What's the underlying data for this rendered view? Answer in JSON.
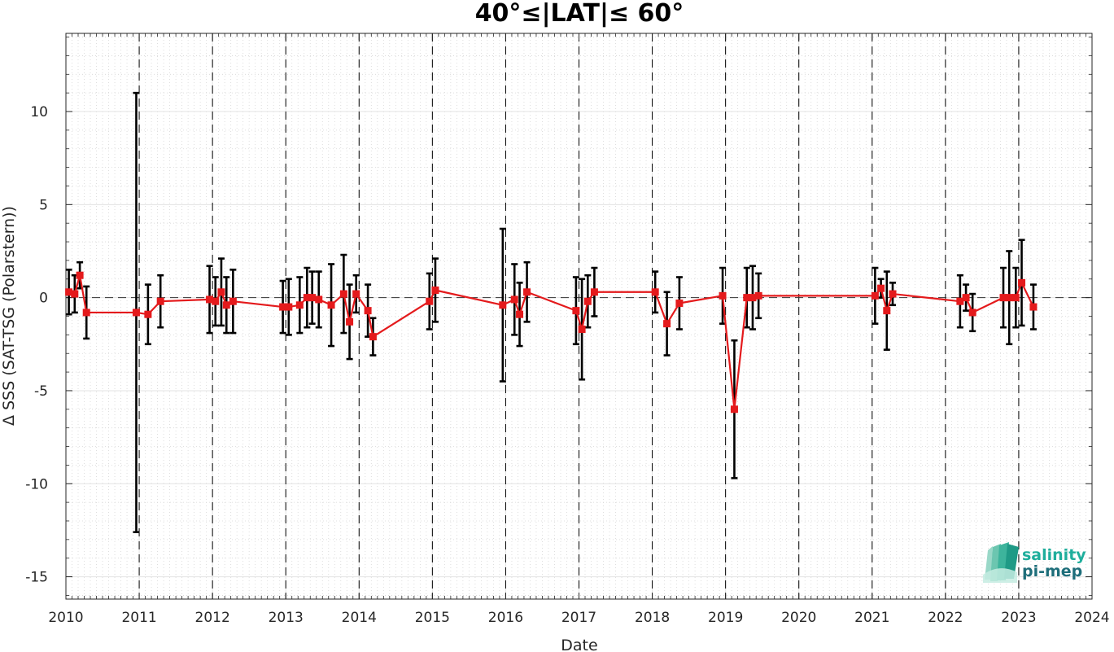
{
  "chart_data": {
    "type": "line",
    "title": "40°≤|LAT|≤ 60°",
    "xlabel": "Date",
    "ylabel": "Δ SSS (SAT-TSG (Polarstern))",
    "xlim": [
      2010,
      2024
    ],
    "ylim": [
      -16.2,
      14.2
    ],
    "xticks": [
      2010,
      2011,
      2012,
      2013,
      2014,
      2015,
      2016,
      2017,
      2018,
      2019,
      2020,
      2021,
      2022,
      2023,
      2024
    ],
    "xtick_labels": [
      "2010",
      "2011",
      "2012",
      "2013",
      "2014",
      "2015",
      "2016",
      "2017",
      "2018",
      "2019",
      "2020",
      "2021",
      "2022",
      "2023",
      "2024"
    ],
    "yticks": [
      -15,
      -10,
      -5,
      0,
      5,
      10
    ],
    "ytick_labels": [
      "-15",
      "-10",
      "-5",
      "0",
      "5",
      "10"
    ],
    "year_boundaries": [
      2011,
      2012,
      2013,
      2014,
      2015,
      2016,
      2017,
      2018,
      2019,
      2020,
      2021,
      2022,
      2023
    ],
    "zero_line": 0,
    "grid": true,
    "minor_grid": true,
    "series": [
      {
        "color": "#e41a1c",
        "errorbar_color": "#000000",
        "marker": "square",
        "x": [
          2010.04,
          2010.12,
          2010.19,
          2010.28,
          2010.96,
          2011.12,
          2011.29,
          2011.96,
          2012.04,
          2012.12,
          2012.19,
          2012.28,
          2012.96,
          2013.04,
          2013.19,
          2013.29,
          2013.36,
          2013.45,
          2013.62,
          2013.79,
          2013.87,
          2013.96,
          2014.12,
          2014.19,
          2014.96,
          2015.04,
          2015.96,
          2016.12,
          2016.19,
          2016.29,
          2016.96,
          2017.04,
          2017.12,
          2017.21,
          2018.04,
          2018.2,
          2018.37,
          2018.96,
          2019.12,
          2019.29,
          2019.37,
          2019.45,
          2021.04,
          2021.12,
          2021.2,
          2021.28,
          2022.2,
          2022.28,
          2022.37,
          2022.79,
          2022.87,
          2022.96,
          2023.04,
          2023.2
        ],
        "y": [
          0.3,
          0.2,
          1.2,
          -0.8,
          -0.8,
          -0.9,
          -0.2,
          -0.1,
          -0.2,
          0.3,
          -0.4,
          -0.2,
          -0.5,
          -0.5,
          -0.4,
          0.0,
          0.0,
          -0.1,
          -0.4,
          0.2,
          -1.3,
          0.2,
          -0.7,
          -2.1,
          -0.2,
          0.4,
          -0.4,
          -0.1,
          -0.9,
          0.3,
          -0.7,
          -1.7,
          -0.2,
          0.3,
          0.3,
          -1.4,
          -0.3,
          0.1,
          -6.0,
          0.0,
          0.0,
          0.1,
          0.1,
          0.5,
          -0.7,
          0.2,
          -0.2,
          0.0,
          -0.8,
          0.0,
          0.0,
          0.0,
          0.8,
          -0.5
        ],
        "err": [
          1.2,
          1.0,
          0.7,
          1.4,
          11.8,
          1.6,
          1.4,
          1.8,
          1.3,
          1.8,
          1.5,
          1.7,
          1.4,
          1.5,
          1.5,
          1.6,
          1.4,
          1.5,
          2.2,
          2.1,
          2.0,
          1.0,
          1.4,
          1.0,
          1.5,
          1.7,
          4.1,
          1.9,
          1.7,
          1.6,
          1.8,
          2.7,
          1.4,
          1.3,
          1.1,
          1.7,
          1.4,
          1.5,
          3.7,
          1.6,
          1.7,
          1.2,
          1.5,
          0.5,
          2.1,
          0.6,
          1.4,
          0.7,
          1.0,
          1.6,
          2.5,
          1.6,
          2.3,
          1.2
        ]
      }
    ]
  },
  "logo": {
    "line1": "salinity",
    "line2": "pi-mep",
    "color1": "#1fae9c",
    "color2": "#1e6e7a"
  }
}
